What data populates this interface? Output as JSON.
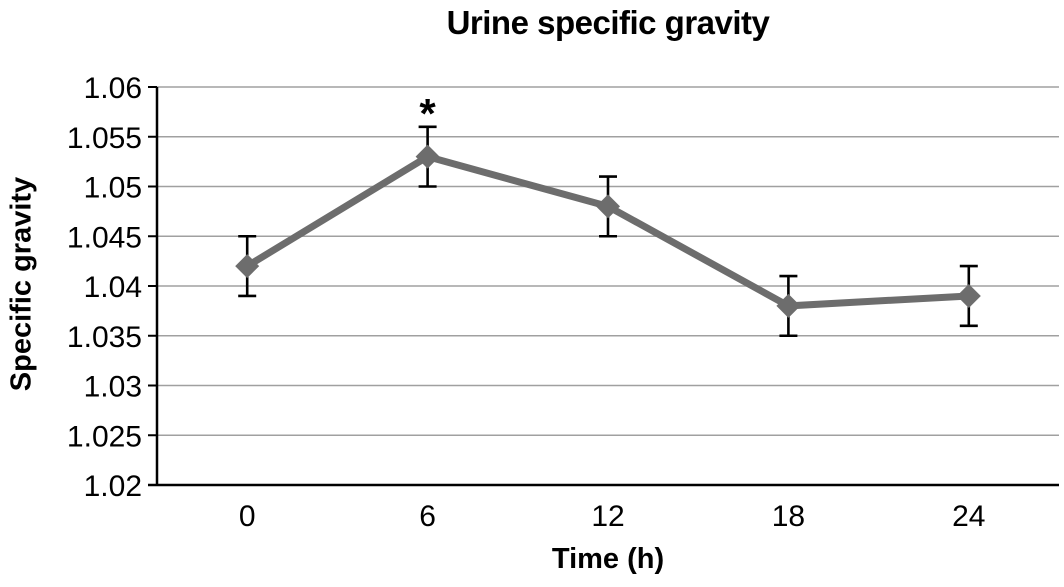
{
  "chart_data": {
    "type": "line",
    "title": "Urine specific gravity",
    "xlabel": "Time (h)",
    "ylabel": "Specific gravity",
    "categories": [
      0,
      6,
      12,
      18,
      24
    ],
    "xtick_labels": [
      "0",
      "6",
      "12",
      "18",
      "24"
    ],
    "series": [
      {
        "name": "Urine specific gravity",
        "values": [
          1.042,
          1.053,
          1.048,
          1.038,
          1.039
        ],
        "error": [
          0.003,
          0.003,
          0.003,
          0.003,
          0.003
        ]
      }
    ],
    "annotations": [
      {
        "category_index": 1,
        "text": "*"
      }
    ],
    "ylim": [
      1.02,
      1.06
    ],
    "ytick_step": 0.005,
    "ytick_labels": [
      "1.02",
      "1.025",
      "1.03",
      "1.035",
      "1.04",
      "1.045",
      "1.05",
      "1.055",
      "1.06"
    ],
    "grid": true,
    "legend_position": "none",
    "colors": {
      "line": "#6d6d6d",
      "marker": "#6d6d6d",
      "error_bar": "#000000",
      "gridline": "#a0a0a0",
      "axis": "#000000",
      "text": "#000000",
      "background": "#ffffff"
    }
  }
}
